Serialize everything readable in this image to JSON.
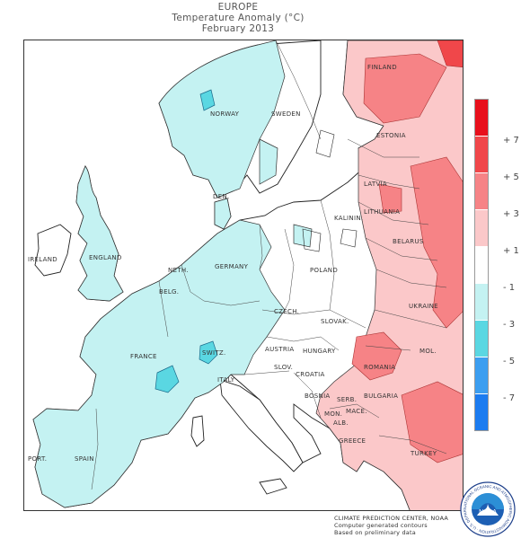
{
  "title": {
    "region": "EUROPE",
    "quantity": "Temperature Anomaly (°C)",
    "period": "February 2013"
  },
  "legend": {
    "ticks": [
      "+ 7",
      "+ 5",
      "+ 3",
      "+ 1",
      "- 1",
      "- 3",
      "- 5",
      "- 7"
    ],
    "colors": [
      "#e8101c",
      "#f0474a",
      "#f68386",
      "#fbc8c9",
      "#ffffff",
      "#c4f2f2",
      "#5ad7e2",
      "#3c9ef0",
      "#1c7cf0"
    ]
  },
  "countries": [
    {
      "name": "FINLAND"
    },
    {
      "name": "NORWAY"
    },
    {
      "name": "SWEDEN"
    },
    {
      "name": "ESTONIA"
    },
    {
      "name": "LATVIA"
    },
    {
      "name": "LITHUANIA"
    },
    {
      "name": "DEN."
    },
    {
      "name": "KALININ."
    },
    {
      "name": "BELARUS"
    },
    {
      "name": "IRELAND"
    },
    {
      "name": "ENGLAND"
    },
    {
      "name": "NETH."
    },
    {
      "name": "GERMANY"
    },
    {
      "name": "POLAND"
    },
    {
      "name": "BELG."
    },
    {
      "name": "UKRAINE"
    },
    {
      "name": "CZECH."
    },
    {
      "name": "SLOVAK."
    },
    {
      "name": "FRANCE"
    },
    {
      "name": "AUSTRIA"
    },
    {
      "name": "HUNGARY"
    },
    {
      "name": "MOL."
    },
    {
      "name": "SWITZ."
    },
    {
      "name": "SLOV."
    },
    {
      "name": "ROMANIA"
    },
    {
      "name": "CROATIA"
    },
    {
      "name": "ITALY"
    },
    {
      "name": "BOSNIA"
    },
    {
      "name": "SERB."
    },
    {
      "name": "MON."
    },
    {
      "name": "BULGARIA"
    },
    {
      "name": "MACE."
    },
    {
      "name": "ALB."
    },
    {
      "name": "GREECE"
    },
    {
      "name": "TURKEY"
    },
    {
      "name": "PORT."
    },
    {
      "name": "SPAIN"
    }
  ],
  "credits": {
    "line1": "CLIMATE PREDICTION CENTER, NOAA",
    "line2": "Computer generated contours",
    "line3": "Based on preliminary data"
  },
  "logo": {
    "text": "NOAA",
    "ring_text": "NATIONAL OCEANIC AND ATMOSPHERIC ADMINISTRATION · U.S. DEPARTMENT OF COMMERCE"
  }
}
